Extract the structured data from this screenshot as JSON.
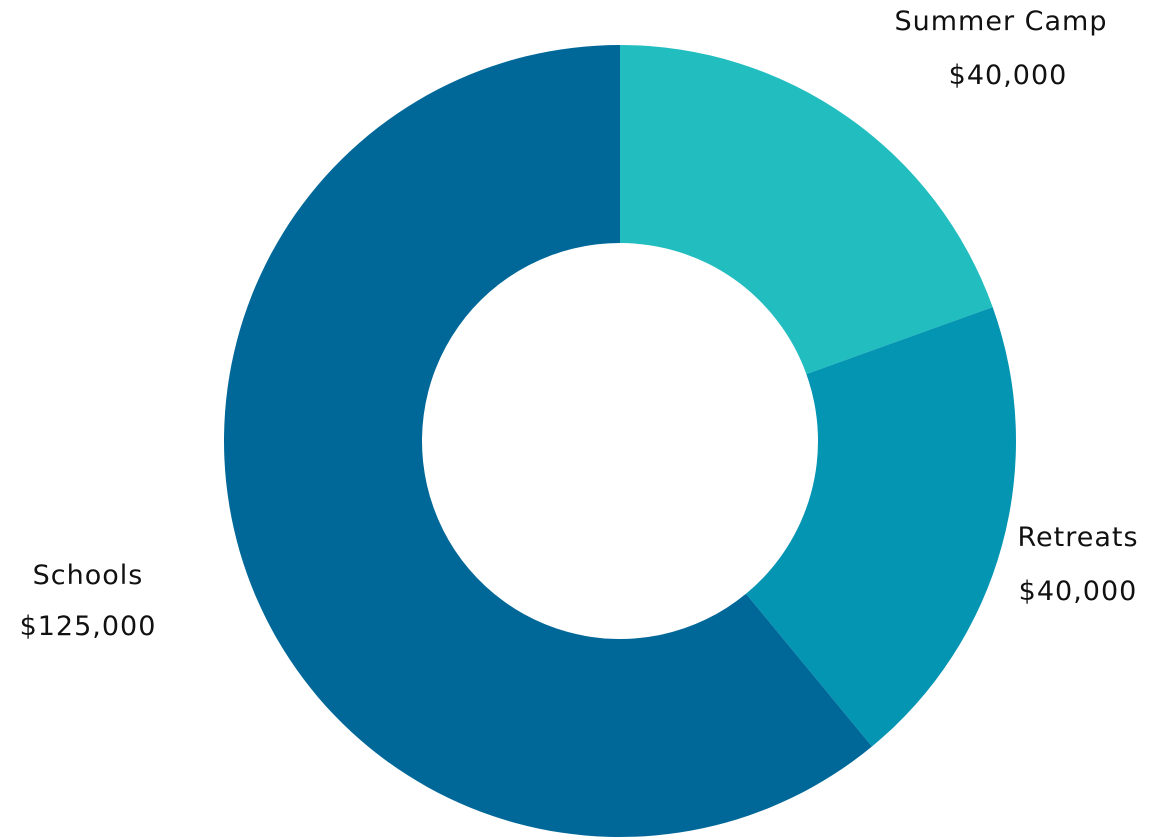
{
  "chart_data": {
    "type": "pie",
    "donut": true,
    "title": "",
    "slices": [
      {
        "label": "Summer Camp",
        "value": 40000,
        "value_label": "$40,000",
        "color": "#22bdbf"
      },
      {
        "label": "Retreats",
        "value": 40000,
        "value_label": "$40,000",
        "color": "#0495b3"
      },
      {
        "label": "Schools",
        "value": 125000,
        "value_label": "$125,000",
        "color": "#006898"
      }
    ],
    "start_angle": "12 o'clock",
    "direction": "clockwise",
    "legend": "none"
  }
}
